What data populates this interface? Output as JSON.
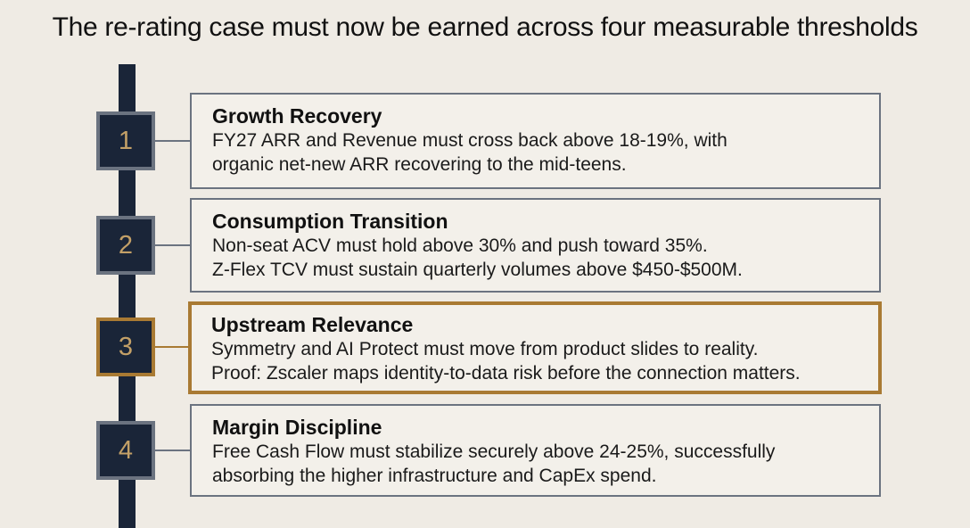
{
  "title": "The re-rating case must now be earned across four measurable thresholds",
  "colors": {
    "background": "#efebe4",
    "spine": "#1a2538",
    "step_fill": "#1a2538",
    "step_number": "#c3a067",
    "border": "#6b7380",
    "highlight": "#a97a33"
  },
  "thresholds": [
    {
      "number": "1",
      "title": "Growth Recovery",
      "lines": [
        "FY27 ARR and Revenue must cross back above 18-19%, with",
        "organic net-new ARR recovering to the mid-teens."
      ],
      "highlighted": false
    },
    {
      "number": "2",
      "title": "Consumption Transition",
      "lines": [
        "Non-seat ACV must hold above 30% and push toward 35%.",
        "Z-Flex TCV must sustain quarterly volumes above $450-$500M."
      ],
      "highlighted": false
    },
    {
      "number": "3",
      "title": "Upstream Relevance",
      "lines": [
        "Symmetry and AI Protect must move from product slides to reality.",
        "Proof: Zscaler maps identity-to-data risk before the connection matters."
      ],
      "highlighted": true
    },
    {
      "number": "4",
      "title": "Margin Discipline",
      "lines": [
        "Free Cash Flow must stabilize securely above 24-25%, successfully",
        "absorbing the higher infrastructure and CapEx spend."
      ],
      "highlighted": false
    }
  ]
}
